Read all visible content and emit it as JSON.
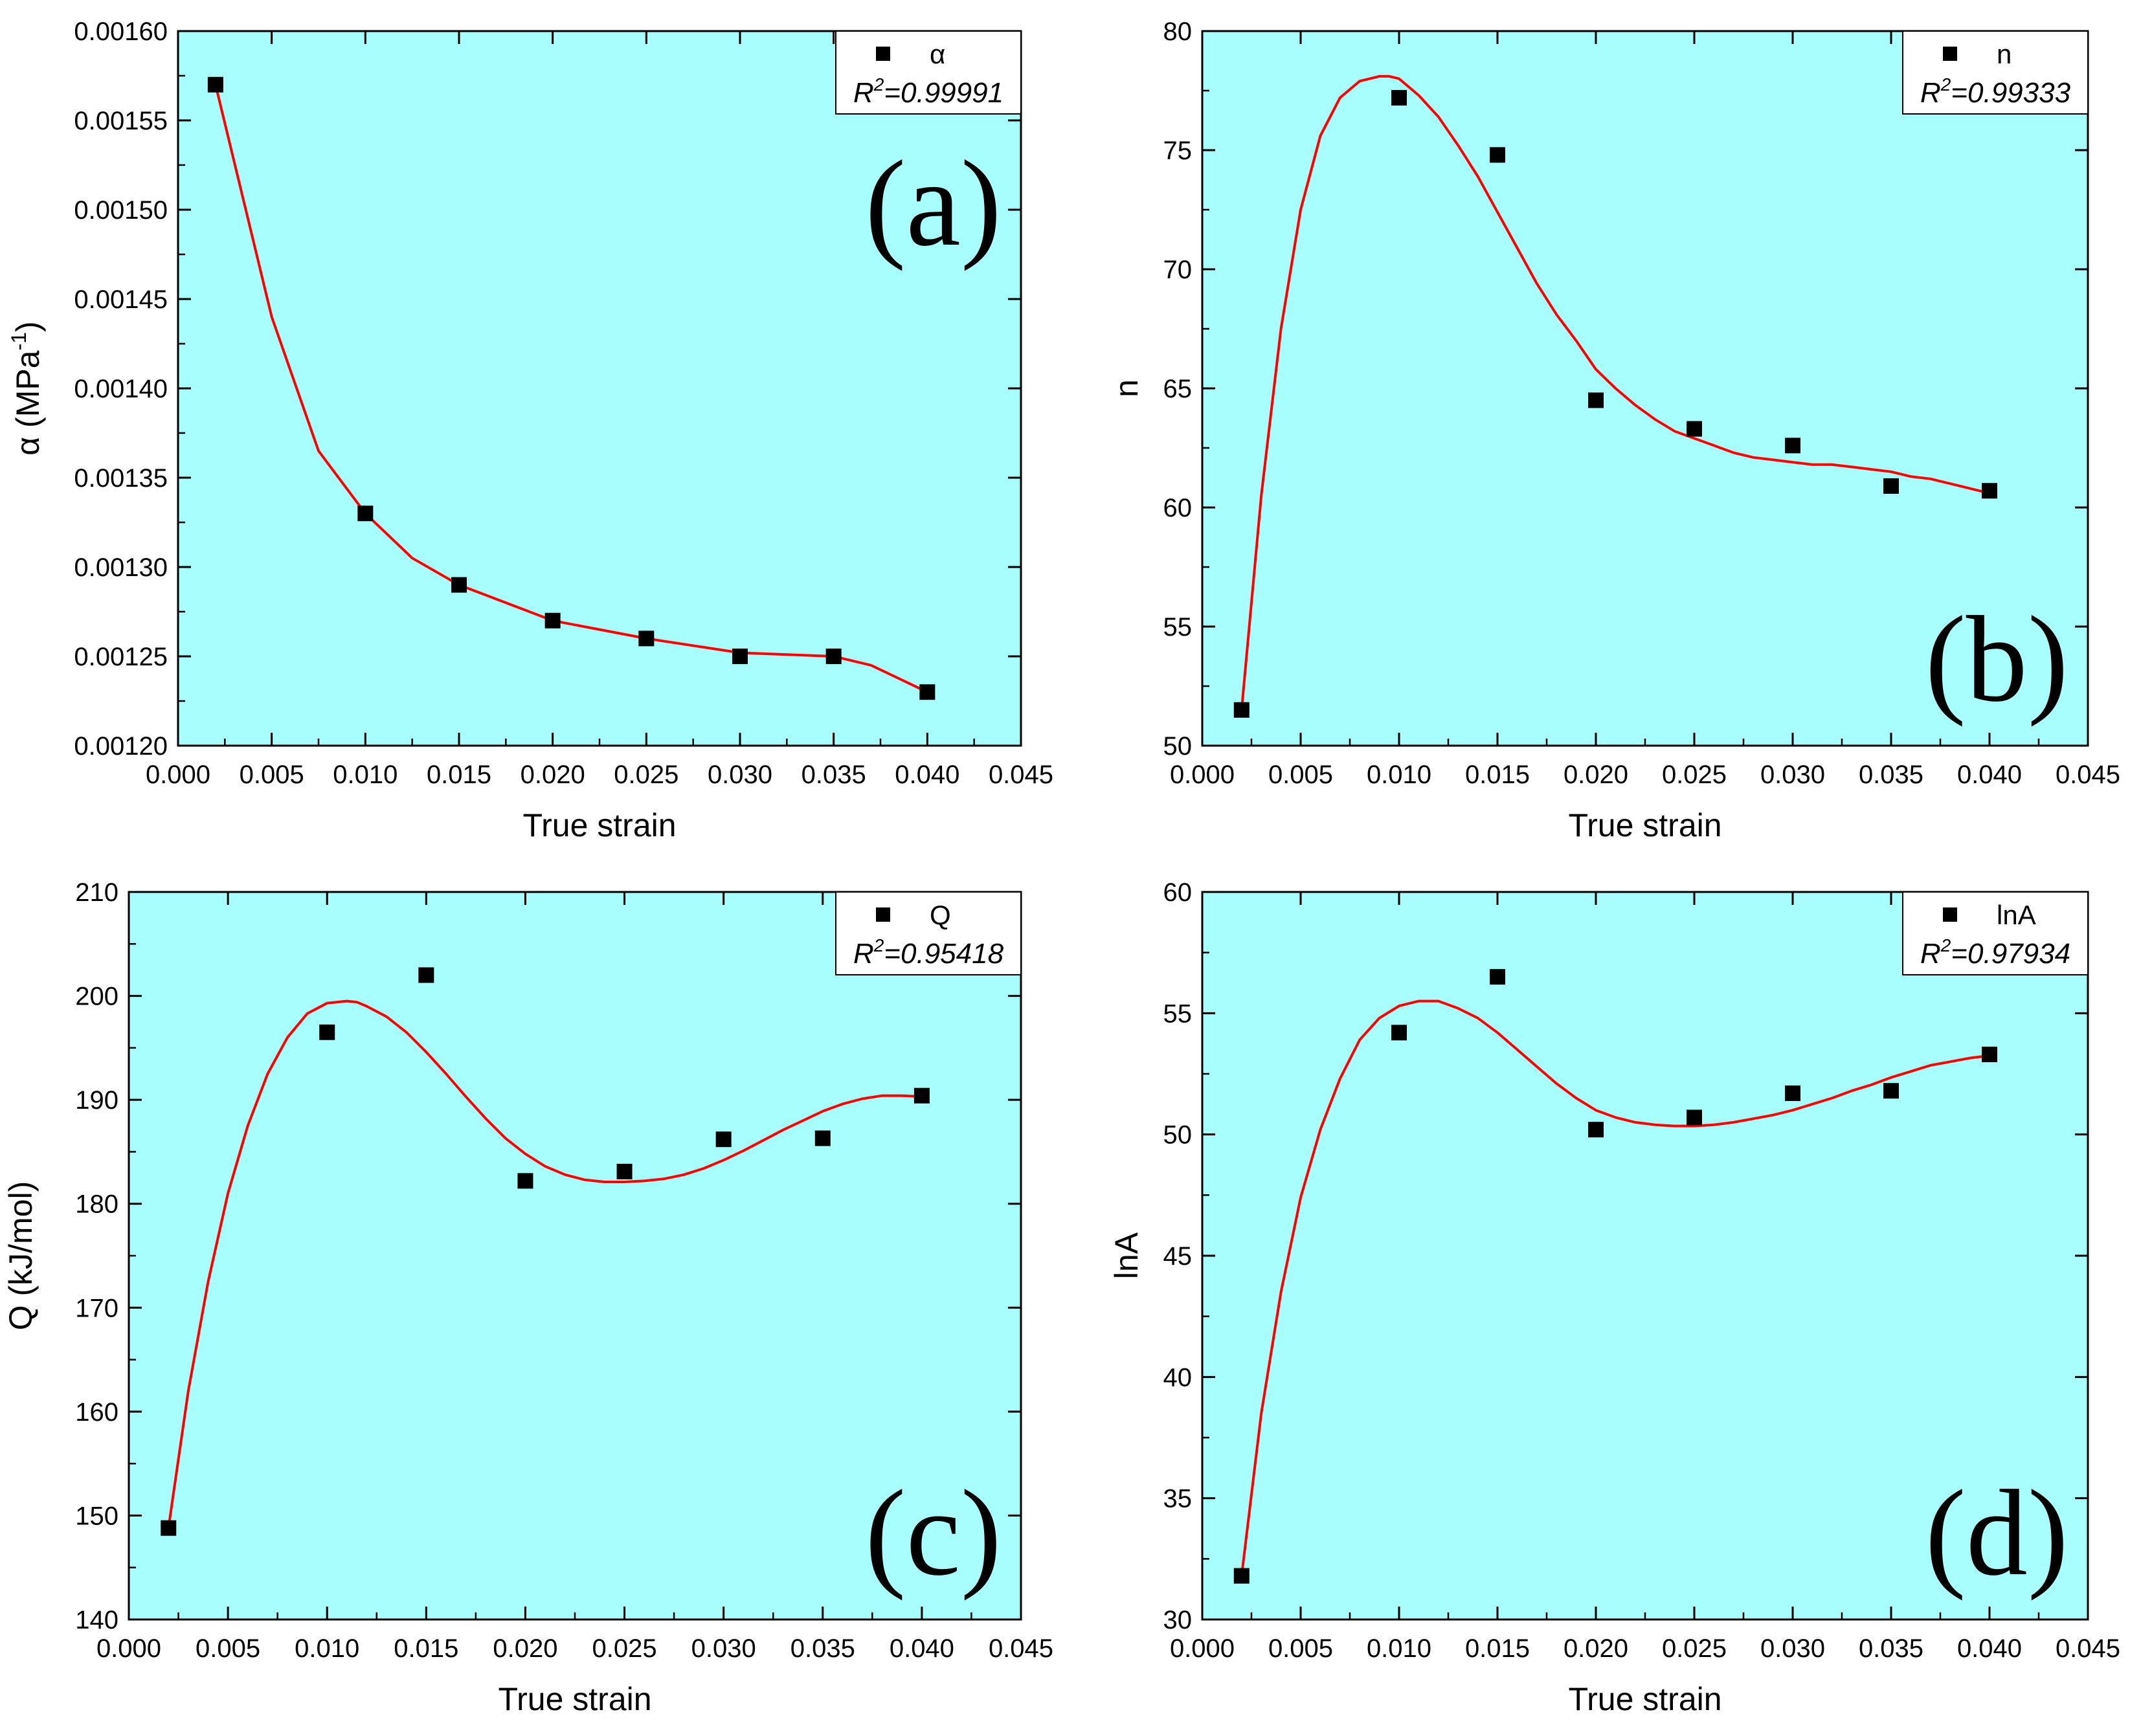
{
  "colors": {
    "plot_background": "#a8fdfd",
    "fit_line": "#ff0000",
    "marker": "#000000"
  },
  "chart_data": [
    {
      "type": "scatter",
      "panel": "(a)",
      "xlabel": "True strain",
      "ylabel": "α (MPa⁻¹)",
      "ylabel_main": "α (MPa",
      "ylabel_sup": "-1",
      "ylabel_tail": ")",
      "xlim": [
        0,
        0.045
      ],
      "ylim": [
        0.0012,
        0.0016
      ],
      "x_ticks": [
        "0.000",
        "0.005",
        "0.010",
        "0.015",
        "0.020",
        "0.025",
        "0.030",
        "0.035",
        "0.040",
        "0.045"
      ],
      "y_ticks": [
        "0.00120",
        "0.00125",
        "0.00130",
        "0.00135",
        "0.00140",
        "0.00145",
        "0.00150",
        "0.00155",
        "0.00160"
      ],
      "legend": {
        "entry": "α",
        "r2_text": "=0.99991",
        "placement": "top-right"
      },
      "series": [
        {
          "name": "α",
          "x": [
            0.002,
            0.01,
            0.015,
            0.02,
            0.025,
            0.03,
            0.035,
            0.04
          ],
          "y": [
            0.00157,
            0.00133,
            0.00129,
            0.00127,
            0.00126,
            0.00125,
            0.00125,
            0.00123
          ]
        }
      ],
      "fit": {
        "name": "polynomial fit",
        "x": [
          0.002,
          0.005,
          0.0075,
          0.01,
          0.0125,
          0.015,
          0.02,
          0.025,
          0.03,
          0.035,
          0.037,
          0.04
        ],
        "y": [
          0.00157,
          0.00144,
          0.001365,
          0.00133,
          0.001305,
          0.00129,
          0.00127,
          0.00126,
          0.001252,
          0.00125,
          0.001245,
          0.00123
        ]
      }
    },
    {
      "type": "scatter",
      "panel": "(b)",
      "xlabel": "True strain",
      "ylabel": "n",
      "ylabel_main": "n",
      "ylabel_sup": "",
      "ylabel_tail": "",
      "xlim": [
        0,
        0.045
      ],
      "ylim": [
        50,
        80
      ],
      "x_ticks": [
        "0.000",
        "0.005",
        "0.010",
        "0.015",
        "0.020",
        "0.025",
        "0.030",
        "0.035",
        "0.040",
        "0.045"
      ],
      "y_ticks": [
        "50",
        "55",
        "60",
        "65",
        "70",
        "75",
        "80"
      ],
      "legend": {
        "entry": "n",
        "r2_text": "=0.99333",
        "placement": "top-right"
      },
      "series": [
        {
          "name": "n",
          "x": [
            0.002,
            0.01,
            0.015,
            0.02,
            0.025,
            0.03,
            0.035,
            0.04
          ],
          "y": [
            51.5,
            77.2,
            74.8,
            64.5,
            63.3,
            62.6,
            60.9,
            60.7
          ]
        }
      ],
      "fit": {
        "name": "polynomial fit",
        "x": [
          0.002,
          0.003,
          0.004,
          0.005,
          0.006,
          0.007,
          0.008,
          0.009,
          0.0095,
          0.01,
          0.011,
          0.012,
          0.013,
          0.014,
          0.015,
          0.016,
          0.017,
          0.018,
          0.019,
          0.02,
          0.021,
          0.022,
          0.023,
          0.024,
          0.025,
          0.026,
          0.027,
          0.028,
          0.029,
          0.03,
          0.031,
          0.032,
          0.033,
          0.034,
          0.035,
          0.036,
          0.037,
          0.038,
          0.039,
          0.04
        ],
        "y": [
          51.5,
          60.5,
          67.5,
          72.5,
          75.6,
          77.2,
          77.9,
          78.1,
          78.1,
          78.0,
          77.3,
          76.4,
          75.2,
          73.9,
          72.4,
          70.9,
          69.4,
          68.1,
          67.0,
          65.8,
          65.0,
          64.3,
          63.7,
          63.2,
          62.9,
          62.6,
          62.3,
          62.1,
          62.0,
          61.9,
          61.8,
          61.8,
          61.7,
          61.6,
          61.5,
          61.3,
          61.2,
          61.0,
          60.8,
          60.6
        ]
      }
    },
    {
      "type": "scatter",
      "panel": "(c)",
      "xlabel": "True strain",
      "ylabel": "Q (kJ/mol)",
      "ylabel_main": "Q (kJ/mol)",
      "ylabel_sup": "",
      "ylabel_tail": "",
      "xlim": [
        0,
        0.045
      ],
      "ylim": [
        140,
        210
      ],
      "x_ticks": [
        "0.000",
        "0.005",
        "0.010",
        "0.015",
        "0.020",
        "0.025",
        "0.030",
        "0.035",
        "0.040",
        "0.045"
      ],
      "y_ticks": [
        "140",
        "150",
        "160",
        "170",
        "180",
        "190",
        "200",
        "210"
      ],
      "legend": {
        "entry": "Q",
        "r2_text": "=0.95418",
        "placement": "top-right"
      },
      "series": [
        {
          "name": "Q",
          "x": [
            0.002,
            0.01,
            0.015,
            0.02,
            0.025,
            0.03,
            0.035,
            0.04
          ],
          "y": [
            148.8,
            196.5,
            202.0,
            182.2,
            183.1,
            186.2,
            186.3,
            190.4
          ]
        }
      ],
      "fit": {
        "name": "polynomial fit",
        "x": [
          0.002,
          0.003,
          0.004,
          0.005,
          0.006,
          0.007,
          0.008,
          0.009,
          0.01,
          0.011,
          0.0115,
          0.012,
          0.013,
          0.014,
          0.015,
          0.016,
          0.017,
          0.018,
          0.019,
          0.02,
          0.021,
          0.022,
          0.023,
          0.024,
          0.025,
          0.026,
          0.027,
          0.028,
          0.029,
          0.03,
          0.031,
          0.032,
          0.033,
          0.034,
          0.035,
          0.036,
          0.037,
          0.038,
          0.039,
          0.04
        ],
        "y": [
          148.8,
          162.0,
          172.5,
          181.0,
          187.5,
          192.5,
          196.0,
          198.3,
          199.3,
          199.5,
          199.4,
          199.0,
          198.0,
          196.5,
          194.6,
          192.5,
          190.3,
          188.2,
          186.3,
          184.8,
          183.6,
          182.8,
          182.3,
          182.1,
          182.1,
          182.2,
          182.4,
          182.8,
          183.4,
          184.2,
          185.1,
          186.1,
          187.1,
          188.0,
          188.9,
          189.6,
          190.1,
          190.4,
          190.4,
          190.3
        ]
      }
    },
    {
      "type": "scatter",
      "panel": "(d)",
      "xlabel": "True strain",
      "ylabel": "lnA",
      "ylabel_main": "lnA",
      "ylabel_sup": "",
      "ylabel_tail": "",
      "xlim": [
        0,
        0.045
      ],
      "ylim": [
        30,
        60
      ],
      "x_ticks": [
        "0.000",
        "0.005",
        "0.010",
        "0.015",
        "0.020",
        "0.025",
        "0.030",
        "0.035",
        "0.040",
        "0.045"
      ],
      "y_ticks": [
        "30",
        "35",
        "40",
        "45",
        "50",
        "55",
        "60"
      ],
      "legend": {
        "entry": "lnA",
        "r2_text": "=0.97934",
        "placement": "top-right"
      },
      "series": [
        {
          "name": "lnA",
          "x": [
            0.002,
            0.01,
            0.015,
            0.02,
            0.025,
            0.03,
            0.035,
            0.04
          ],
          "y": [
            31.8,
            54.2,
            56.5,
            50.2,
            50.7,
            51.7,
            51.8,
            53.3
          ]
        }
      ],
      "fit": {
        "name": "polynomial fit",
        "x": [
          0.002,
          0.003,
          0.004,
          0.005,
          0.006,
          0.007,
          0.008,
          0.009,
          0.01,
          0.011,
          0.012,
          0.013,
          0.014,
          0.015,
          0.016,
          0.017,
          0.018,
          0.019,
          0.02,
          0.021,
          0.022,
          0.023,
          0.024,
          0.025,
          0.026,
          0.027,
          0.028,
          0.029,
          0.03,
          0.031,
          0.032,
          0.033,
          0.034,
          0.035,
          0.036,
          0.037,
          0.038,
          0.039,
          0.04
        ],
        "y": [
          31.8,
          38.5,
          43.5,
          47.4,
          50.2,
          52.3,
          53.9,
          54.8,
          55.3,
          55.5,
          55.5,
          55.2,
          54.8,
          54.2,
          53.5,
          52.8,
          52.1,
          51.5,
          51.0,
          50.7,
          50.5,
          50.4,
          50.35,
          50.35,
          50.4,
          50.5,
          50.65,
          50.8,
          51.0,
          51.25,
          51.5,
          51.8,
          52.05,
          52.35,
          52.6,
          52.85,
          53.0,
          53.15,
          53.25
        ]
      }
    }
  ]
}
